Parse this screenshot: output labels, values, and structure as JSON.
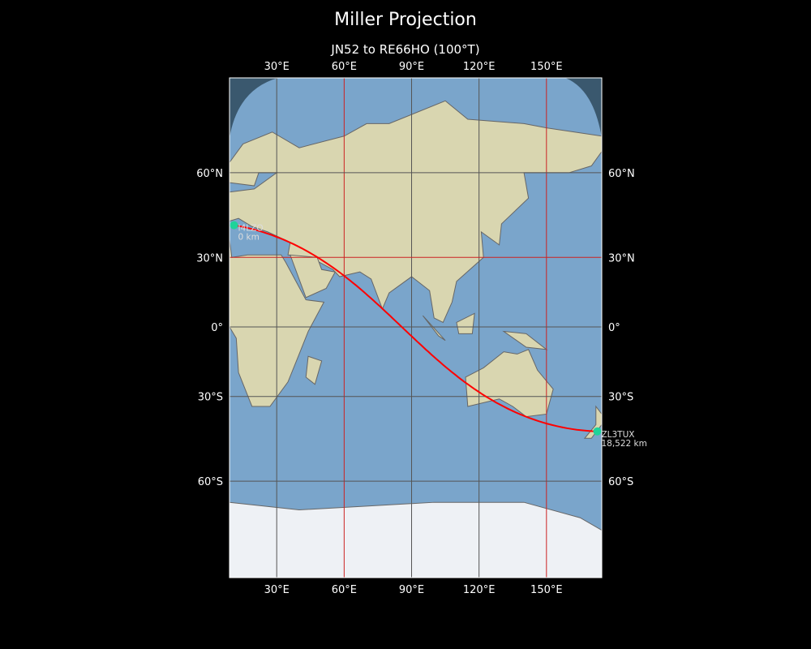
{
  "figure": {
    "title": "Miller Projection",
    "subtitle": "JN52 to RE66HO (100°T)"
  },
  "map": {
    "projection": "Miller",
    "lon_range": [
      9,
      174.6
    ],
    "lat_range": [
      -83,
      83
    ],
    "lon_ticks": [
      {
        "v": 30,
        "label": "30°E"
      },
      {
        "v": 60,
        "label": "60°E"
      },
      {
        "v": 90,
        "label": "90°E"
      },
      {
        "v": 120,
        "label": "120°E"
      },
      {
        "v": 150,
        "label": "150°E"
      }
    ],
    "lat_ticks": [
      {
        "v": 60,
        "label": "60°N"
      },
      {
        "v": 30,
        "label": "30°N"
      },
      {
        "v": 0,
        "label": "0°"
      },
      {
        "v": -30,
        "label": "30°S"
      },
      {
        "v": -60,
        "label": "60°S"
      }
    ],
    "red_gridlines": {
      "lon": [
        60,
        150
      ],
      "lat": [
        30
      ]
    },
    "colors": {
      "ocean": "#7aa5cb",
      "land": "#d9d6b0",
      "ice": "#eef1f5",
      "path": "#ff0000",
      "marker": "#1ed39a",
      "grid": "#555555",
      "redgrid": "#cc2222"
    },
    "points": [
      {
        "name": "I4LZO",
        "distance": "0 km",
        "lon": 11.0,
        "lat": 42.5
      },
      {
        "name": "ZL3TUX",
        "distance": "18,522 km",
        "lon": 172.6,
        "lat": -43.5
      }
    ]
  }
}
